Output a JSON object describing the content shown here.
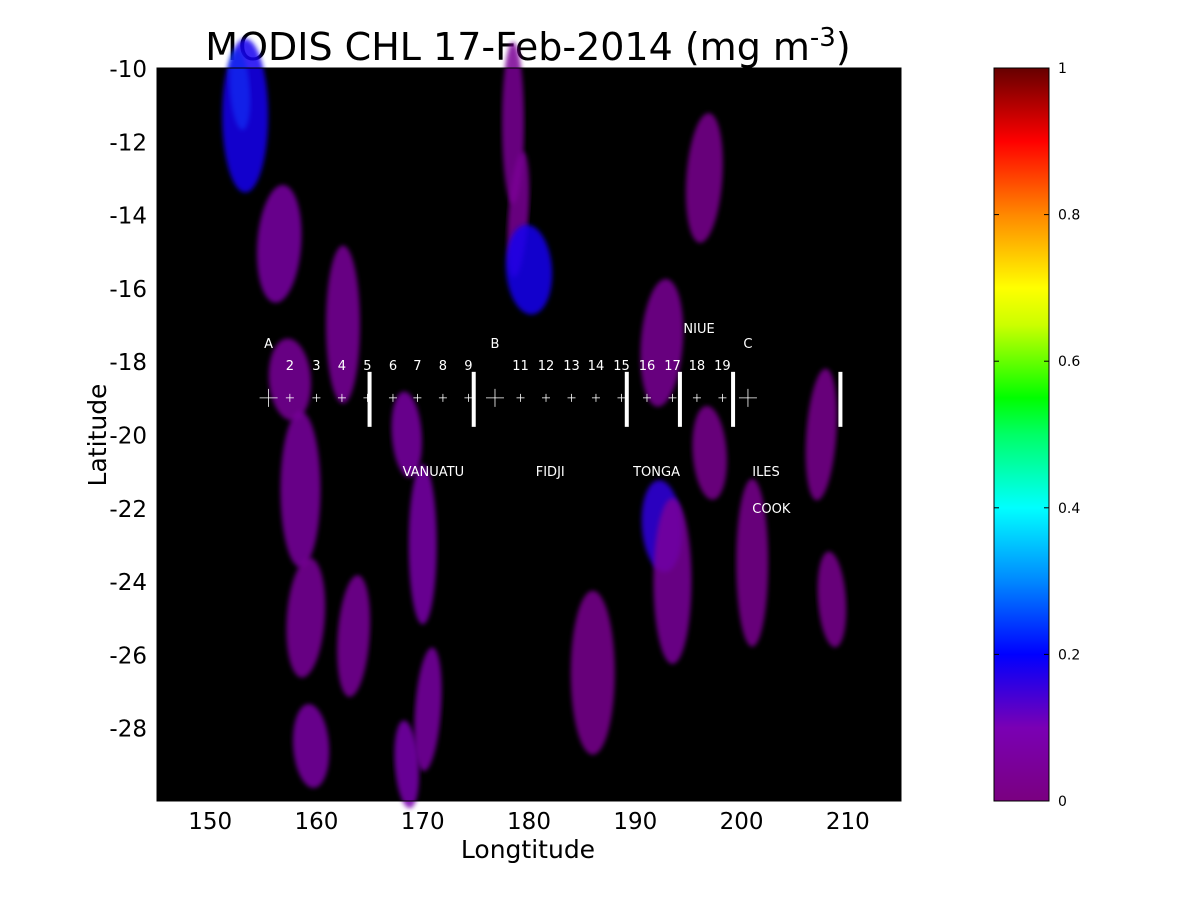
{
  "chart_data": {
    "type": "heatmap",
    "title": {
      "main": "MODIS CHL 17-Feb-2014 (mg m",
      "superscript": "-3",
      "close": ")"
    },
    "xlabel": "Longtitude",
    "ylabel": "Latitude",
    "xlim": [
      145,
      215
    ],
    "ylim": [
      -30,
      -10
    ],
    "x_ticks": [
      150,
      160,
      170,
      180,
      190,
      200,
      210
    ],
    "x_tick_labels": [
      "150",
      "160",
      "170",
      "180",
      "190",
      "200",
      "210"
    ],
    "y_ticks": [
      -10,
      -12,
      -14,
      -16,
      -18,
      -20,
      -22,
      -24,
      -26,
      -28
    ],
    "y_tick_labels": [
      "-10",
      "-12",
      "-14",
      "-16",
      "-18",
      "-20",
      "-22",
      "-24",
      "-26",
      "-28"
    ],
    "background_color": "#000000",
    "colorbar": {
      "min": 0,
      "max": 1,
      "ticks": [
        0,
        0.2,
        0.4,
        0.6,
        0.8,
        1
      ],
      "tick_labels": [
        "0",
        "0.2",
        "0.4",
        "0.6",
        "0.8",
        "1"
      ],
      "colormap": "spectral"
    },
    "chlorophyll_patches": [
      {
        "lon": 152.8,
        "lat": -10.6,
        "value": 0.42
      },
      {
        "lon": 153.3,
        "lat": -11.3,
        "value": 0.18
      },
      {
        "lon": 156.5,
        "lat": -14.8,
        "value": 0.07
      },
      {
        "lon": 157.5,
        "lat": -18.5,
        "value": 0.05
      },
      {
        "lon": 158.5,
        "lat": -21.5,
        "value": 0.06
      },
      {
        "lon": 159.0,
        "lat": -25.0,
        "value": 0.05
      },
      {
        "lon": 159.5,
        "lat": -28.5,
        "value": 0.07
      },
      {
        "lon": 162.5,
        "lat": -17.0,
        "value": 0.05
      },
      {
        "lon": 163.5,
        "lat": -25.5,
        "value": 0.05
      },
      {
        "lon": 168.5,
        "lat": -20.0,
        "value": 0.07
      },
      {
        "lon": 170.0,
        "lat": -23.0,
        "value": 0.08
      },
      {
        "lon": 170.5,
        "lat": -27.5,
        "value": 0.07
      },
      {
        "lon": 168.5,
        "lat": -29.0,
        "value": 0.09
      },
      {
        "lon": 178.5,
        "lat": -11.5,
        "value": 0.04
      },
      {
        "lon": 179.0,
        "lat": -14.0,
        "value": 0.04
      },
      {
        "lon": 180.0,
        "lat": -15.5,
        "value": 0.18
      },
      {
        "lon": 186.0,
        "lat": -26.5,
        "value": 0.03
      },
      {
        "lon": 192.5,
        "lat": -17.5,
        "value": 0.04
      },
      {
        "lon": 192.5,
        "lat": -22.5,
        "value": 0.16
      },
      {
        "lon": 193.5,
        "lat": -24.0,
        "value": 0.05
      },
      {
        "lon": 196.5,
        "lat": -13.0,
        "value": 0.03
      },
      {
        "lon": 197.0,
        "lat": -20.5,
        "value": 0.03
      },
      {
        "lon": 201.0,
        "lat": -23.5,
        "value": 0.03
      },
      {
        "lon": 207.5,
        "lat": -20.0,
        "value": 0.03
      },
      {
        "lon": 208.5,
        "lat": -24.5,
        "value": 0.03
      }
    ],
    "transect": {
      "lat": -19,
      "stations": [
        {
          "label": "A",
          "lon": 155.5,
          "major": true
        },
        {
          "label": "2",
          "lon": 157.5
        },
        {
          "label": "3",
          "lon": 160.0
        },
        {
          "label": "4",
          "lon": 162.4
        },
        {
          "label": "5",
          "lon": 164.8
        },
        {
          "label": "6",
          "lon": 167.2
        },
        {
          "label": "7",
          "lon": 169.5
        },
        {
          "label": "8",
          "lon": 171.9
        },
        {
          "label": "9",
          "lon": 174.3
        },
        {
          "label": "B",
          "lon": 176.8,
          "major": true
        },
        {
          "label": "11",
          "lon": 179.2
        },
        {
          "label": "12",
          "lon": 181.6
        },
        {
          "label": "13",
          "lon": 184.0
        },
        {
          "label": "14",
          "lon": 186.3
        },
        {
          "label": "15",
          "lon": 188.7
        },
        {
          "label": "16",
          "lon": 191.1
        },
        {
          "label": "17",
          "lon": 193.5
        },
        {
          "label": "18",
          "lon": 195.8
        },
        {
          "label": "19",
          "lon": 198.2
        },
        {
          "label": "C",
          "lon": 200.6,
          "major": true
        }
      ],
      "boundaries_lon": [
        165.0,
        174.8,
        189.2,
        194.2,
        199.2,
        209.3
      ]
    },
    "annotations": [
      {
        "text": "NIUE",
        "lon": 196.0,
        "lat": -17.1
      },
      {
        "text": "VANUATU",
        "lon": 171.0,
        "lat": -21.0
      },
      {
        "text": "FIDJI",
        "lon": 182.0,
        "lat": -21.0
      },
      {
        "text": "TONGA",
        "lon": 192.0,
        "lat": -21.0
      },
      {
        "text": "ILES",
        "lon": 202.3,
        "lat": -21.0
      },
      {
        "text": "COOK",
        "lon": 202.8,
        "lat": -22.0
      }
    ]
  }
}
